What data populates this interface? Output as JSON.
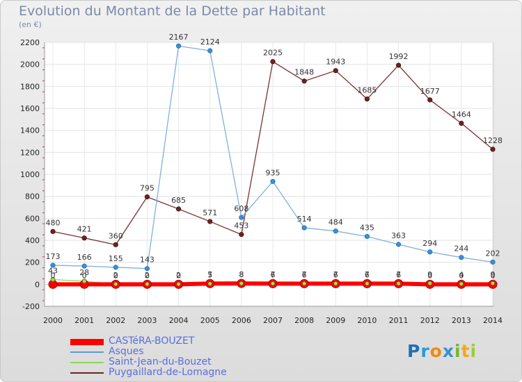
{
  "header": {
    "title": "Evolution du Montant de la Dette par Habitant",
    "subtitle": "(en €)"
  },
  "logo": {
    "text": "Proxiti"
  },
  "chart_data": {
    "type": "line",
    "title": "Evolution du Montant de la Dette par Habitant",
    "ylabel": "(en €)",
    "xlabel": "",
    "x": [
      "2000",
      "2001",
      "2002",
      "2003",
      "2004",
      "2005",
      "2006",
      "2007",
      "2008",
      "2009",
      "2010",
      "2011",
      "2012",
      "2013",
      "2014"
    ],
    "ylim": [
      -200,
      2200
    ],
    "yticks": [
      -200,
      0,
      200,
      400,
      600,
      800,
      1000,
      1200,
      1400,
      1600,
      1800,
      2000,
      2200
    ],
    "grid": true,
    "legend_position": "bottom-left",
    "series": [
      {
        "name": "CASTéRA-BOUZET",
        "color": "#ff0000",
        "values": [
          0,
          0,
          0,
          0,
          0,
          7,
          8,
          6,
          6,
          6,
          6,
          6,
          0,
          0,
          0
        ],
        "labels": [
          "0",
          "0",
          "0",
          "0",
          "0",
          "7",
          "8",
          "6",
          "6",
          "6",
          "6",
          "6",
          "0",
          "0",
          "0"
        ]
      },
      {
        "name": "Asques",
        "color": "#5b9bd5",
        "values": [
          173,
          166,
          155,
          143,
          2167,
          2124,
          608,
          935,
          514,
          484,
          435,
          363,
          294,
          244,
          202
        ],
        "labels": [
          "173",
          "166",
          "155",
          "143",
          "2167",
          "2124",
          "608",
          "935",
          "514",
          "484",
          "435",
          "363",
          "294",
          "244",
          "202"
        ]
      },
      {
        "name": "Saint-Jean-du-Bouzet",
        "color": "#8ed45a",
        "values": [
          43,
          28,
          2,
          2,
          2,
          5,
          8,
          7,
          7,
          7,
          7,
          7,
          9,
          4,
          9
        ],
        "labels": [
          "43",
          "28",
          "2",
          "2",
          "2",
          "5",
          "8",
          "7",
          "7",
          "7",
          "7",
          "7",
          "9",
          "4",
          "9"
        ]
      },
      {
        "name": "Puygaillard-de-Lomagne",
        "color": "#6e2323",
        "values": [
          480,
          421,
          360,
          795,
          685,
          571,
          453,
          2025,
          1848,
          1943,
          1685,
          1992,
          1677,
          1464,
          1228
        ],
        "labels": [
          "480",
          "421",
          "360",
          "795",
          "685",
          "571",
          "453",
          "2025",
          "1848",
          "1943",
          "1685",
          "1992",
          "1677",
          "1464",
          "1228"
        ]
      }
    ]
  }
}
